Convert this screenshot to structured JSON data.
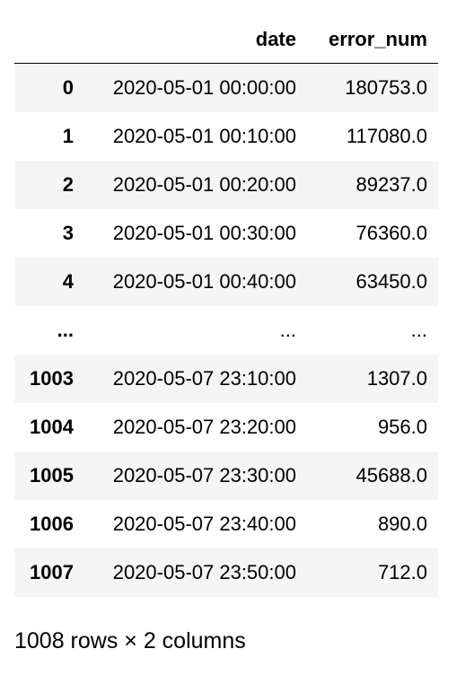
{
  "table": {
    "columns": [
      "",
      "date",
      "error_num"
    ],
    "rows": [
      {
        "index": "0",
        "date": "2020-05-01 00:00:00",
        "error_num": "180753.0"
      },
      {
        "index": "1",
        "date": "2020-05-01 00:10:00",
        "error_num": "117080.0"
      },
      {
        "index": "2",
        "date": "2020-05-01 00:20:00",
        "error_num": "89237.0"
      },
      {
        "index": "3",
        "date": "2020-05-01 00:30:00",
        "error_num": "76360.0"
      },
      {
        "index": "4",
        "date": "2020-05-01 00:40:00",
        "error_num": "63450.0"
      },
      {
        "index": "...",
        "date": "...",
        "error_num": "..."
      },
      {
        "index": "1003",
        "date": "2020-05-07 23:10:00",
        "error_num": "1307.0"
      },
      {
        "index": "1004",
        "date": "2020-05-07 23:20:00",
        "error_num": "956.0"
      },
      {
        "index": "1005",
        "date": "2020-05-07 23:30:00",
        "error_num": "45688.0"
      },
      {
        "index": "1006",
        "date": "2020-05-07 23:40:00",
        "error_num": "890.0"
      },
      {
        "index": "1007",
        "date": "2020-05-07 23:50:00",
        "error_num": "712.0"
      }
    ]
  },
  "shape_text": "1008 rows × 2 columns",
  "colors": {
    "stripe": "#f5f5f5",
    "text": "#000000"
  }
}
